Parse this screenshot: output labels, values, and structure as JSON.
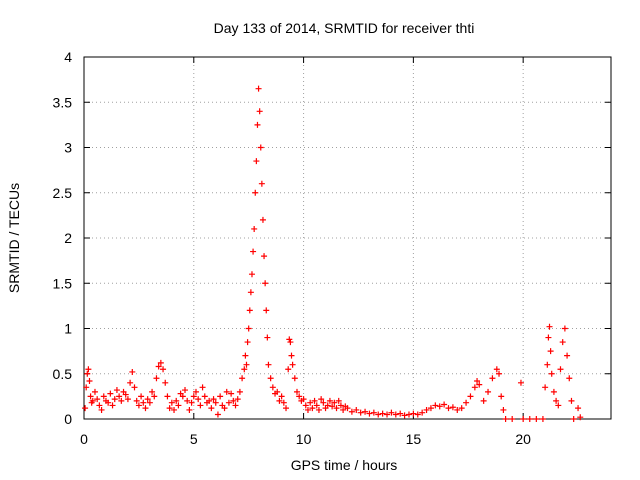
{
  "chart_data": {
    "type": "scatter",
    "title": "Day 133 of 2014, SRMTID for receiver thti",
    "xlabel": "GPS time / hours",
    "ylabel": "SRMTID / TECUs",
    "xlim": [
      0,
      24
    ],
    "ylim": [
      0,
      4
    ],
    "xticks": [
      0,
      5,
      10,
      15,
      20
    ],
    "yticks": [
      0,
      0.5,
      1,
      1.5,
      2,
      2.5,
      3,
      3.5,
      4
    ],
    "ytick_labels": [
      "0",
      "0.5",
      "1",
      "1.5",
      "2",
      "2.5",
      "3",
      "3.5",
      "4"
    ],
    "grid": true,
    "marker": "+",
    "color": "#ff0000",
    "series": [
      {
        "name": "SRMTID",
        "points": [
          [
            0.05,
            0.12
          ],
          [
            0.1,
            0.35
          ],
          [
            0.15,
            0.5
          ],
          [
            0.2,
            0.55
          ],
          [
            0.25,
            0.42
          ],
          [
            0.3,
            0.25
          ],
          [
            0.35,
            0.18
          ],
          [
            0.4,
            0.2
          ],
          [
            0.5,
            0.3
          ],
          [
            0.6,
            0.22
          ],
          [
            0.7,
            0.15
          ],
          [
            0.8,
            0.1
          ],
          [
            0.9,
            0.25
          ],
          [
            1.0,
            0.2
          ],
          [
            1.1,
            0.18
          ],
          [
            1.2,
            0.28
          ],
          [
            1.3,
            0.15
          ],
          [
            1.4,
            0.22
          ],
          [
            1.5,
            0.32
          ],
          [
            1.6,
            0.25
          ],
          [
            1.7,
            0.2
          ],
          [
            1.8,
            0.3
          ],
          [
            1.9,
            0.27
          ],
          [
            2.0,
            0.22
          ],
          [
            2.1,
            0.4
          ],
          [
            2.2,
            0.52
          ],
          [
            2.3,
            0.35
          ],
          [
            2.4,
            0.2
          ],
          [
            2.5,
            0.15
          ],
          [
            2.6,
            0.25
          ],
          [
            2.7,
            0.18
          ],
          [
            2.8,
            0.12
          ],
          [
            2.9,
            0.22
          ],
          [
            3.0,
            0.18
          ],
          [
            3.1,
            0.3
          ],
          [
            3.2,
            0.25
          ],
          [
            3.3,
            0.45
          ],
          [
            3.4,
            0.58
          ],
          [
            3.5,
            0.62
          ],
          [
            3.6,
            0.55
          ],
          [
            3.7,
            0.4
          ],
          [
            3.8,
            0.25
          ],
          [
            3.9,
            0.12
          ],
          [
            4.0,
            0.18
          ],
          [
            4.1,
            0.1
          ],
          [
            4.2,
            0.2
          ],
          [
            4.3,
            0.15
          ],
          [
            4.4,
            0.28
          ],
          [
            4.5,
            0.25
          ],
          [
            4.6,
            0.32
          ],
          [
            4.7,
            0.2
          ],
          [
            4.8,
            0.1
          ],
          [
            4.9,
            0.18
          ],
          [
            5.0,
            0.25
          ],
          [
            5.1,
            0.3
          ],
          [
            5.2,
            0.22
          ],
          [
            5.3,
            0.15
          ],
          [
            5.4,
            0.35
          ],
          [
            5.5,
            0.25
          ],
          [
            5.6,
            0.18
          ],
          [
            5.7,
            0.2
          ],
          [
            5.8,
            0.12
          ],
          [
            5.9,
            0.22
          ],
          [
            6.0,
            0.18
          ],
          [
            6.1,
            0.05
          ],
          [
            6.2,
            0.25
          ],
          [
            6.3,
            0.15
          ],
          [
            6.4,
            0.12
          ],
          [
            6.5,
            0.3
          ],
          [
            6.6,
            0.18
          ],
          [
            6.7,
            0.28
          ],
          [
            6.8,
            0.2
          ],
          [
            6.9,
            0.15
          ],
          [
            7.0,
            0.22
          ],
          [
            7.1,
            0.3
          ],
          [
            7.2,
            0.45
          ],
          [
            7.3,
            0.55
          ],
          [
            7.35,
            0.7
          ],
          [
            7.4,
            0.6
          ],
          [
            7.45,
            0.85
          ],
          [
            7.5,
            1.0
          ],
          [
            7.55,
            1.2
          ],
          [
            7.6,
            1.4
          ],
          [
            7.65,
            1.6
          ],
          [
            7.7,
            1.85
          ],
          [
            7.75,
            2.1
          ],
          [
            7.8,
            2.5
          ],
          [
            7.85,
            2.85
          ],
          [
            7.9,
            3.25
          ],
          [
            7.95,
            3.65
          ],
          [
            8.0,
            3.4
          ],
          [
            8.05,
            3.0
          ],
          [
            8.1,
            2.6
          ],
          [
            8.15,
            2.2
          ],
          [
            8.2,
            1.8
          ],
          [
            8.25,
            1.5
          ],
          [
            8.3,
            1.2
          ],
          [
            8.35,
            0.9
          ],
          [
            8.4,
            0.6
          ],
          [
            8.5,
            0.45
          ],
          [
            8.6,
            0.35
          ],
          [
            8.7,
            0.28
          ],
          [
            8.8,
            0.3
          ],
          [
            8.9,
            0.2
          ],
          [
            9.0,
            0.25
          ],
          [
            9.1,
            0.18
          ],
          [
            9.2,
            0.12
          ],
          [
            9.3,
            0.55
          ],
          [
            9.35,
            0.88
          ],
          [
            9.4,
            0.85
          ],
          [
            9.45,
            0.7
          ],
          [
            9.5,
            0.6
          ],
          [
            9.6,
            0.45
          ],
          [
            9.7,
            0.3
          ],
          [
            9.8,
            0.25
          ],
          [
            9.9,
            0.2
          ],
          [
            10.0,
            0.22
          ],
          [
            10.1,
            0.15
          ],
          [
            10.2,
            0.1
          ],
          [
            10.3,
            0.18
          ],
          [
            10.4,
            0.12
          ],
          [
            10.5,
            0.2
          ],
          [
            10.6,
            0.15
          ],
          [
            10.7,
            0.1
          ],
          [
            10.8,
            0.22
          ],
          [
            10.9,
            0.18
          ],
          [
            11.0,
            0.12
          ],
          [
            11.1,
            0.15
          ],
          [
            11.2,
            0.2
          ],
          [
            11.3,
            0.14
          ],
          [
            11.4,
            0.18
          ],
          [
            11.5,
            0.12
          ],
          [
            11.6,
            0.2
          ],
          [
            11.7,
            0.15
          ],
          [
            11.8,
            0.1
          ],
          [
            11.9,
            0.14
          ],
          [
            12.0,
            0.12
          ],
          [
            12.2,
            0.08
          ],
          [
            12.4,
            0.1
          ],
          [
            12.6,
            0.07
          ],
          [
            12.8,
            0.08
          ],
          [
            13.0,
            0.06
          ],
          [
            13.2,
            0.07
          ],
          [
            13.4,
            0.05
          ],
          [
            13.6,
            0.06
          ],
          [
            13.8,
            0.05
          ],
          [
            14.0,
            0.07
          ],
          [
            14.2,
            0.05
          ],
          [
            14.4,
            0.06
          ],
          [
            14.6,
            0.04
          ],
          [
            14.8,
            0.05
          ],
          [
            15.0,
            0.06
          ],
          [
            15.2,
            0.05
          ],
          [
            15.4,
            0.07
          ],
          [
            15.6,
            0.1
          ],
          [
            15.8,
            0.12
          ],
          [
            16.0,
            0.15
          ],
          [
            16.2,
            0.14
          ],
          [
            16.4,
            0.16
          ],
          [
            16.6,
            0.12
          ],
          [
            16.8,
            0.13
          ],
          [
            17.0,
            0.1
          ],
          [
            17.2,
            0.12
          ],
          [
            17.4,
            0.18
          ],
          [
            17.6,
            0.25
          ],
          [
            17.8,
            0.35
          ],
          [
            17.9,
            0.42
          ],
          [
            18.0,
            0.38
          ],
          [
            18.2,
            0.2
          ],
          [
            18.4,
            0.3
          ],
          [
            18.6,
            0.45
          ],
          [
            18.8,
            0.55
          ],
          [
            18.9,
            0.5
          ],
          [
            19.0,
            0.25
          ],
          [
            19.1,
            0.1
          ],
          [
            19.2,
            0.0
          ],
          [
            19.5,
            0.0
          ],
          [
            19.9,
            0.4
          ],
          [
            20.0,
            0.0
          ],
          [
            20.3,
            0.0
          ],
          [
            20.6,
            0.0
          ],
          [
            20.9,
            0.0
          ],
          [
            21.0,
            0.35
          ],
          [
            21.1,
            0.6
          ],
          [
            21.15,
            0.9
          ],
          [
            21.2,
            1.02
          ],
          [
            21.25,
            0.75
          ],
          [
            21.3,
            0.5
          ],
          [
            21.4,
            0.3
          ],
          [
            21.5,
            0.2
          ],
          [
            21.6,
            0.15
          ],
          [
            21.7,
            0.55
          ],
          [
            21.8,
            0.85
          ],
          [
            21.9,
            1.0
          ],
          [
            22.0,
            0.7
          ],
          [
            22.1,
            0.45
          ],
          [
            22.2,
            0.2
          ],
          [
            22.3,
            0.0
          ],
          [
            22.5,
            0.12
          ],
          [
            22.6,
            0.02
          ]
        ]
      }
    ]
  }
}
